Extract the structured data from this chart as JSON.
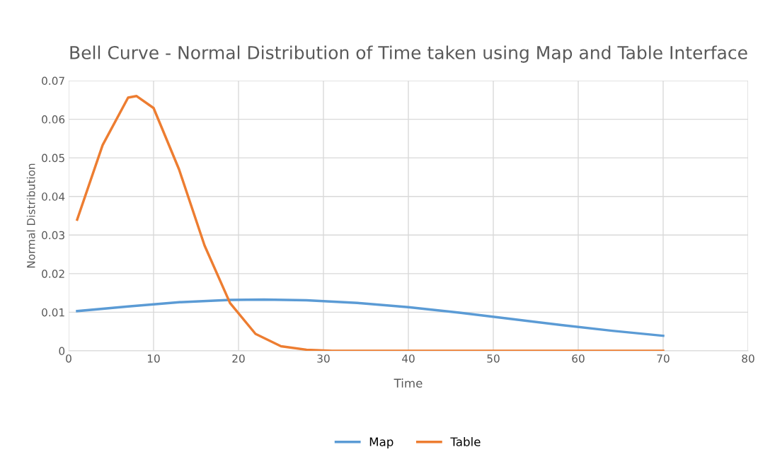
{
  "chart_data": {
    "type": "line",
    "title": "Bell Curve - Normal Distribution of Time taken using Map and Table Interface",
    "xlabel": "Time",
    "ylabel": "Normal Distribution",
    "series": [
      {
        "name": "Map",
        "color": "#5b9bd5",
        "x": [
          1,
          7,
          13,
          19,
          23,
          28,
          34,
          40,
          46,
          52,
          58,
          64,
          70
        ],
        "values": [
          0.0103,
          0.0115,
          0.0126,
          0.0132,
          0.0133,
          0.0131,
          0.0124,
          0.0113,
          0.0099,
          0.0083,
          0.0067,
          0.0052,
          0.0039
        ]
      },
      {
        "name": "Table",
        "color": "#ed7d31",
        "x": [
          1,
          4,
          7,
          8,
          10,
          13,
          16,
          19,
          22,
          25,
          28,
          31,
          40,
          50,
          60,
          70
        ],
        "values": [
          0.034,
          0.0533,
          0.0656,
          0.066,
          0.0629,
          0.047,
          0.0273,
          0.0124,
          0.0044,
          0.0012,
          0.0003,
          0,
          0,
          0,
          0,
          0
        ]
      }
    ],
    "xlim": [
      0,
      80
    ],
    "xticks": [
      0,
      10,
      20,
      30,
      40,
      50,
      60,
      70,
      80
    ],
    "ylim": [
      0,
      0.07
    ],
    "yticks": [
      0,
      0.01,
      0.02,
      0.03,
      0.04,
      0.05,
      0.06,
      0.07
    ],
    "grid": true,
    "legend": "bottom",
    "marker": "none",
    "line_style": "solid"
  }
}
